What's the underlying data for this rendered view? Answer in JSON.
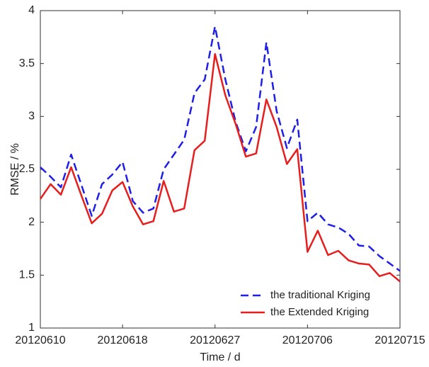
{
  "chart_data": {
    "type": "line",
    "xlabel": "Time / d",
    "ylabel": "RMSE / %",
    "categories": [
      "20120610",
      null,
      null,
      null,
      null,
      null,
      null,
      null,
      "20120618",
      null,
      null,
      null,
      null,
      null,
      null,
      null,
      null,
      "20120627",
      null,
      null,
      null,
      null,
      null,
      null,
      null,
      null,
      "20120706",
      null,
      null,
      null,
      null,
      null,
      null,
      null,
      null,
      "20120715"
    ],
    "series": [
      {
        "name": "the traditional Kriging",
        "color": "#1f1fe6",
        "dash": true,
        "values": [
          2.52,
          2.43,
          2.33,
          2.64,
          2.35,
          2.06,
          2.36,
          2.45,
          2.57,
          2.2,
          2.09,
          2.13,
          2.5,
          2.64,
          2.78,
          3.22,
          3.35,
          3.85,
          3.35,
          2.95,
          2.67,
          2.9,
          3.7,
          3.05,
          2.7,
          2.97,
          2.01,
          2.09,
          1.98,
          1.95,
          1.89,
          1.78,
          1.77,
          1.68,
          1.61,
          1.54
        ]
      },
      {
        "name": "the Extended Kriging",
        "color": "#e61e1e",
        "dash": false,
        "values": [
          2.22,
          2.36,
          2.26,
          2.52,
          2.25,
          1.99,
          2.08,
          2.3,
          2.38,
          2.15,
          1.98,
          2.01,
          2.39,
          2.1,
          2.13,
          2.68,
          2.77,
          3.59,
          3.2,
          2.93,
          2.62,
          2.65,
          3.16,
          2.9,
          2.55,
          2.69,
          1.72,
          1.92,
          1.69,
          1.73,
          1.64,
          1.61,
          1.6,
          1.49,
          1.52,
          1.44
        ]
      }
    ],
    "ylim": [
      1,
      4
    ],
    "yticks": [
      1,
      1.5,
      2,
      2.5,
      3,
      3.5,
      4
    ],
    "grid": false,
    "legend": "lower right"
  }
}
